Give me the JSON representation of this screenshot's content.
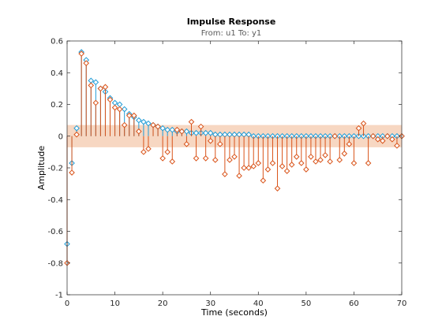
{
  "figure": {
    "title": "Impulse Response",
    "subtitle": "From: u1  To: y1"
  },
  "chart_data": {
    "type": "scatter",
    "title": "Impulse Response",
    "subtitle": "From: u1  To: y1",
    "xlabel": "Time (seconds)",
    "ylabel": "Amplitude",
    "xlim": [
      0,
      70
    ],
    "ylim": [
      -1,
      0.6
    ],
    "xticks": [
      0,
      10,
      20,
      30,
      40,
      50,
      60,
      70
    ],
    "yticks": [
      -1,
      -0.8,
      -0.6,
      -0.4,
      -0.2,
      0,
      0.2,
      0.4,
      0.6
    ],
    "xtick_labels": [
      "0",
      "10",
      "20",
      "30",
      "40",
      "50",
      "60",
      "70"
    ],
    "ytick_labels": [
      "-1",
      "-0.8",
      "-0.6",
      "-0.4",
      "-0.2",
      "0",
      "0.2",
      "0.4",
      "0.6"
    ],
    "grid": false,
    "marker": "diamond-stem",
    "colors": {
      "series_blue": "#1f9bd6",
      "series_orange": "#d95319",
      "confidence_band": "#f4c9ae"
    },
    "confidence_band": {
      "x": [
        0,
        70
      ],
      "upper": [
        0.07,
        0.07
      ],
      "lower": [
        -0.07,
        -0.07
      ]
    },
    "series": [
      {
        "x": [
          0,
          1,
          2,
          3,
          4,
          5,
          6,
          7,
          8,
          9,
          10,
          11,
          12,
          13,
          14,
          15,
          16,
          17,
          18,
          19,
          20,
          21,
          22,
          23,
          24,
          25,
          26,
          27,
          28,
          29,
          30,
          31,
          32,
          33,
          34,
          35,
          36,
          37,
          38,
          39,
          40,
          41,
          42,
          43,
          44,
          45,
          46,
          47,
          48,
          49,
          50,
          51,
          52,
          53,
          54,
          55,
          56,
          57,
          58,
          59,
          60,
          61,
          62,
          63,
          64,
          65,
          66,
          67,
          68,
          69,
          70
        ],
        "values": [
          -0.68,
          -0.17,
          0.05,
          0.53,
          0.48,
          0.35,
          0.34,
          0.3,
          0.28,
          0.24,
          0.21,
          0.2,
          0.17,
          0.14,
          0.12,
          0.1,
          0.09,
          0.08,
          0.07,
          0.06,
          0.05,
          0.04,
          0.04,
          0.03,
          0.03,
          0.03,
          0.02,
          0.02,
          0.02,
          0.02,
          0.02,
          0.01,
          0.01,
          0.01,
          0.01,
          0.01,
          0.01,
          0.01,
          0.01,
          0.0,
          0.0,
          0.0,
          0.0,
          0.0,
          0.0,
          0.0,
          0.0,
          0.0,
          0.0,
          0.0,
          0.0,
          0.0,
          0.0,
          0.0,
          0.0,
          0.0,
          0.0,
          0.0,
          0.0,
          0.0,
          0.0,
          0.0,
          0.0,
          0.0,
          0.0,
          0.0,
          0.0,
          0.0,
          0.0,
          0.0,
          0.0
        ]
      },
      {
        "x": [
          0,
          1,
          2,
          3,
          4,
          5,
          6,
          7,
          8,
          9,
          10,
          11,
          12,
          13,
          14,
          15,
          16,
          17,
          18,
          19,
          20,
          21,
          22,
          23,
          24,
          25,
          26,
          27,
          28,
          29,
          30,
          31,
          32,
          33,
          34,
          35,
          36,
          37,
          38,
          39,
          40,
          41,
          42,
          43,
          44,
          45,
          46,
          47,
          48,
          49,
          50,
          51,
          52,
          53,
          54,
          55,
          56,
          57,
          58,
          59,
          60,
          61,
          62,
          63,
          64,
          65,
          66,
          67,
          68,
          69,
          70
        ],
        "values": [
          -0.8,
          -0.23,
          0.01,
          0.52,
          0.46,
          0.32,
          0.21,
          0.3,
          0.31,
          0.23,
          0.18,
          0.17,
          0.07,
          0.13,
          0.13,
          0.03,
          -0.1,
          -0.08,
          0.07,
          0.06,
          -0.14,
          -0.1,
          -0.16,
          0.04,
          0.03,
          -0.05,
          0.09,
          -0.14,
          0.06,
          -0.14,
          -0.03,
          -0.15,
          -0.05,
          -0.24,
          -0.15,
          -0.13,
          -0.25,
          -0.2,
          -0.2,
          -0.19,
          -0.17,
          -0.28,
          -0.21,
          -0.17,
          -0.33,
          -0.19,
          -0.22,
          -0.18,
          -0.13,
          -0.17,
          -0.21,
          -0.13,
          -0.16,
          -0.15,
          -0.12,
          -0.16,
          0.0,
          -0.15,
          -0.11,
          -0.05,
          -0.17,
          0.05,
          0.08,
          -0.17,
          0.0,
          -0.02,
          -0.03,
          0.0,
          -0.02,
          -0.06,
          0.0
        ]
      }
    ]
  }
}
